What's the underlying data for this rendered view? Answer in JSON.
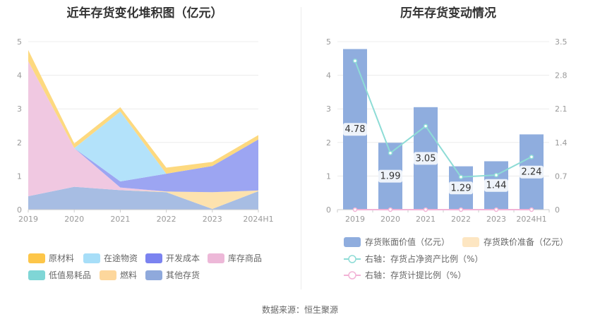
{
  "source_text": "数据来源：恒生聚源",
  "chart_data": [
    {
      "type": "area",
      "stacked": true,
      "title": "近年存货变化堆积图（亿元）",
      "categories": [
        "2019",
        "2020",
        "2021",
        "2022",
        "2023",
        "2024H1"
      ],
      "ylim": [
        0,
        5
      ],
      "yticks": [
        "0",
        "1",
        "2",
        "3",
        "4",
        "5"
      ],
      "grid": true,
      "legend_position": "bottom",
      "series": [
        {
          "name": "其他存货",
          "color": "#a7bde3",
          "values": [
            0.4,
            0.68,
            0.58,
            0.52,
            0.02,
            0.55
          ]
        },
        {
          "name": "燃料",
          "color": "#fde2ae",
          "values": [
            0.0,
            0.0,
            0.0,
            0.02,
            0.5,
            0.02
          ]
        },
        {
          "name": "低值易耗品",
          "color": "#a3e2e2",
          "values": [
            0.0,
            0.0,
            0.0,
            0.0,
            0.0,
            0.0
          ]
        },
        {
          "name": "库存商品",
          "color": "#f0c8e1",
          "values": [
            4.02,
            1.15,
            0.08,
            0.0,
            0.0,
            0.0
          ]
        },
        {
          "name": "开发成本",
          "color": "#9ca5f2",
          "values": [
            0.0,
            0.0,
            0.18,
            0.53,
            0.78,
            1.52
          ]
        },
        {
          "name": "在途物资",
          "color": "#b3e2fa",
          "values": [
            0.0,
            0.0,
            2.08,
            0.0,
            0.0,
            0.0
          ]
        },
        {
          "name": "原材料",
          "color": "#fdd97f",
          "values": [
            0.33,
            0.14,
            0.13,
            0.18,
            0.12,
            0.13
          ]
        }
      ],
      "legend_order": [
        "原材料",
        "在途物资",
        "开发成本",
        "库存商品",
        "低值易耗品",
        "燃料",
        "其他存货"
      ],
      "legend_swatch_colors": {
        "原材料": "#fdc649",
        "在途物资": "#a7def8",
        "开发成本": "#7b83f0",
        "库存商品": "#edb8d8",
        "低值易耗品": "#7fd6d6",
        "燃料": "#fdd79c",
        "其他存货": "#8fa9dc"
      }
    },
    {
      "type": "bar",
      "title": "历年存货变动情况",
      "categories": [
        "2019",
        "2020",
        "2021",
        "2022",
        "2023",
        "2024H1"
      ],
      "ylim": [
        0,
        5
      ],
      "yticks": [
        "0",
        "1",
        "2",
        "3",
        "4",
        "5"
      ],
      "y2lim": [
        0,
        3.5
      ],
      "y2ticks": [
        "0",
        "0.7",
        "1.4",
        "2.1",
        "2.8",
        "3.5"
      ],
      "grid": true,
      "legend_position": "bottom",
      "series": [
        {
          "name": "存货账面价值（亿元）",
          "kind": "bar",
          "axis": "left",
          "color": "#8fadde",
          "values": [
            4.78,
            1.99,
            3.05,
            1.29,
            1.44,
            2.24
          ],
          "labels": [
            "4.78",
            "1.99",
            "3.05",
            "1.29",
            "1.44",
            "2.24"
          ]
        },
        {
          "name": "存货跌价准备（亿元）",
          "kind": "bar",
          "axis": "left",
          "color": "#fde6c2",
          "values": [
            0,
            0,
            0,
            0,
            0,
            0
          ]
        },
        {
          "name": "右轴：存货占净资产比例（%）",
          "kind": "line",
          "axis": "right",
          "color": "#8edcd6",
          "values": [
            3.1,
            1.18,
            1.74,
            0.68,
            0.72,
            1.1
          ]
        },
        {
          "name": "右轴：存货计提比例（%）",
          "kind": "line",
          "axis": "right",
          "color": "#f2b3d6",
          "values": [
            0,
            0,
            0,
            0,
            0,
            0
          ]
        }
      ]
    }
  ]
}
